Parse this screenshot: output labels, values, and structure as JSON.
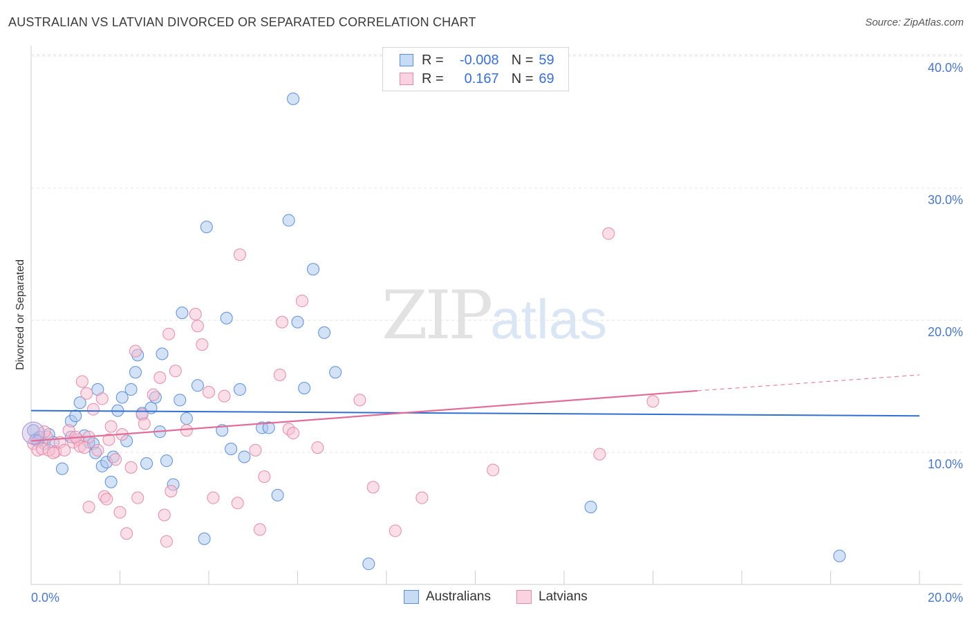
{
  "header": {
    "title": "AUSTRALIAN VS LATVIAN DIVORCED OR SEPARATED CORRELATION CHART",
    "source": "Source: ZipAtlas.com"
  },
  "watermark": {
    "zip": "ZIP",
    "atlas": "atlas"
  },
  "legend": {
    "rows": [
      {
        "r_label": "R =",
        "r_value": "-0.008",
        "n_label": "N =",
        "n_value": "59",
        "color": "#a9c6ef",
        "border": "#5b8ed6"
      },
      {
        "r_label": "R =",
        "r_value": "0.167",
        "n_label": "N =",
        "n_value": "69",
        "color": "#f7c0d1",
        "border": "#e48aa8"
      }
    ]
  },
  "bottom_legend": {
    "australians": "Australians",
    "latvians": "Latvians"
  },
  "chart_data": {
    "type": "scatter",
    "title": "AUSTRALIAN VS LATVIAN DIVORCED OR SEPARATED CORRELATION CHART",
    "xlabel": "",
    "ylabel": "Divorced or Separated",
    "xlim": [
      0,
      20
    ],
    "ylim": [
      0,
      40
    ],
    "x_tick_labels": [
      "0.0%",
      "20.0%"
    ],
    "y_tick_labels": [
      "10.0%",
      "20.0%",
      "30.0%",
      "40.0%"
    ],
    "y_ticks": [
      10,
      20,
      30,
      40
    ],
    "grid": true,
    "series": [
      {
        "name": "Australians",
        "color": "#a9c6ef",
        "stroke": "#5b8ed6",
        "trend": {
          "x": [
            0,
            20
          ],
          "y": [
            14.0,
            13.6
          ],
          "color": "#2f6fd3"
        },
        "points": [
          [
            0.05,
            12.5
          ],
          [
            0.1,
            11.8
          ],
          [
            0.2,
            12.0
          ],
          [
            0.3,
            11.5
          ],
          [
            0.4,
            12.2
          ],
          [
            0.5,
            11.6
          ],
          [
            0.7,
            9.6
          ],
          [
            0.9,
            12.0
          ],
          [
            0.9,
            13.2
          ],
          [
            1.0,
            13.6
          ],
          [
            1.1,
            14.6
          ],
          [
            1.2,
            12.1
          ],
          [
            1.3,
            11.6
          ],
          [
            1.4,
            11.5
          ],
          [
            1.45,
            10.8
          ],
          [
            1.5,
            15.6
          ],
          [
            1.6,
            9.8
          ],
          [
            1.7,
            10.1
          ],
          [
            1.8,
            8.6
          ],
          [
            1.85,
            10.5
          ],
          [
            1.95,
            14.0
          ],
          [
            2.05,
            15.0
          ],
          [
            2.15,
            11.7
          ],
          [
            2.25,
            15.6
          ],
          [
            2.35,
            16.9
          ],
          [
            2.4,
            18.2
          ],
          [
            2.5,
            13.8
          ],
          [
            2.6,
            10.0
          ],
          [
            2.7,
            14.2
          ],
          [
            2.8,
            15.0
          ],
          [
            2.9,
            12.4
          ],
          [
            2.95,
            18.3
          ],
          [
            3.05,
            10.2
          ],
          [
            3.2,
            8.4
          ],
          [
            3.35,
            14.8
          ],
          [
            3.4,
            21.4
          ],
          [
            3.5,
            13.4
          ],
          [
            3.75,
            15.9
          ],
          [
            3.9,
            4.3
          ],
          [
            3.95,
            27.9
          ],
          [
            4.3,
            12.5
          ],
          [
            4.4,
            21.0
          ],
          [
            4.5,
            11.1
          ],
          [
            4.7,
            15.6
          ],
          [
            4.8,
            10.5
          ],
          [
            5.2,
            12.7
          ],
          [
            5.35,
            12.7
          ],
          [
            5.55,
            7.6
          ],
          [
            5.8,
            28.4
          ],
          [
            5.9,
            37.6
          ],
          [
            6.0,
            20.7
          ],
          [
            6.15,
            15.7
          ],
          [
            6.35,
            24.7
          ],
          [
            6.6,
            19.9
          ],
          [
            6.85,
            16.9
          ],
          [
            7.6,
            2.4
          ],
          [
            12.6,
            6.7
          ],
          [
            18.2,
            3.0
          ],
          [
            0.15,
            11.7
          ]
        ]
      },
      {
        "name": "Latvians",
        "color": "#f7c0d1",
        "stroke": "#e48aa8",
        "trend": {
          "x": [
            0,
            15.0
          ],
          "y": [
            11.7,
            15.5
          ],
          "dash_to": [
            20,
            16.7
          ],
          "color": "#e06d97"
        },
        "points": [
          [
            0.05,
            11.5
          ],
          [
            0.15,
            11.0
          ],
          [
            0.25,
            11.1
          ],
          [
            0.35,
            12.0
          ],
          [
            0.55,
            10.9
          ],
          [
            0.65,
            11.6
          ],
          [
            0.75,
            11.0
          ],
          [
            0.85,
            12.5
          ],
          [
            0.95,
            11.6
          ],
          [
            1.05,
            11.8
          ],
          [
            1.1,
            11.3
          ],
          [
            1.15,
            16.2
          ],
          [
            1.25,
            15.3
          ],
          [
            1.3,
            12.0
          ],
          [
            1.3,
            6.7
          ],
          [
            1.4,
            14.1
          ],
          [
            1.5,
            11.0
          ],
          [
            1.6,
            14.9
          ],
          [
            1.65,
            7.5
          ],
          [
            1.7,
            7.3
          ],
          [
            1.75,
            11.8
          ],
          [
            1.8,
            12.8
          ],
          [
            1.9,
            10.3
          ],
          [
            2.0,
            6.3
          ],
          [
            2.05,
            12.2
          ],
          [
            2.15,
            4.7
          ],
          [
            2.25,
            9.7
          ],
          [
            2.35,
            18.5
          ],
          [
            2.4,
            7.4
          ],
          [
            2.5,
            13.7
          ],
          [
            2.55,
            13.0
          ],
          [
            2.75,
            15.2
          ],
          [
            2.9,
            16.5
          ],
          [
            3.0,
            6.1
          ],
          [
            3.05,
            4.1
          ],
          [
            3.1,
            19.8
          ],
          [
            3.15,
            7.9
          ],
          [
            3.25,
            17.0
          ],
          [
            3.5,
            12.5
          ],
          [
            3.7,
            21.3
          ],
          [
            3.75,
            20.4
          ],
          [
            3.85,
            19.0
          ],
          [
            4.0,
            15.4
          ],
          [
            4.1,
            7.4
          ],
          [
            4.35,
            15.1
          ],
          [
            4.65,
            7.0
          ],
          [
            4.7,
            25.8
          ],
          [
            5.05,
            11.0
          ],
          [
            5.15,
            5.0
          ],
          [
            5.25,
            9.0
          ],
          [
            5.6,
            16.7
          ],
          [
            5.65,
            20.7
          ],
          [
            5.8,
            12.6
          ],
          [
            5.9,
            12.3
          ],
          [
            6.1,
            22.3
          ],
          [
            6.45,
            11.2
          ],
          [
            7.4,
            14.8
          ],
          [
            7.7,
            8.2
          ],
          [
            8.2,
            4.9
          ],
          [
            8.8,
            7.4
          ],
          [
            10.4,
            9.5
          ],
          [
            12.8,
            10.7
          ],
          [
            13.0,
            27.4
          ],
          [
            14.0,
            14.7
          ],
          [
            0.4,
            11.0
          ],
          [
            0.5,
            10.8
          ],
          [
            1.0,
            12.0
          ],
          [
            1.2,
            11.2
          ],
          [
            0.3,
            12.4
          ]
        ]
      }
    ]
  }
}
